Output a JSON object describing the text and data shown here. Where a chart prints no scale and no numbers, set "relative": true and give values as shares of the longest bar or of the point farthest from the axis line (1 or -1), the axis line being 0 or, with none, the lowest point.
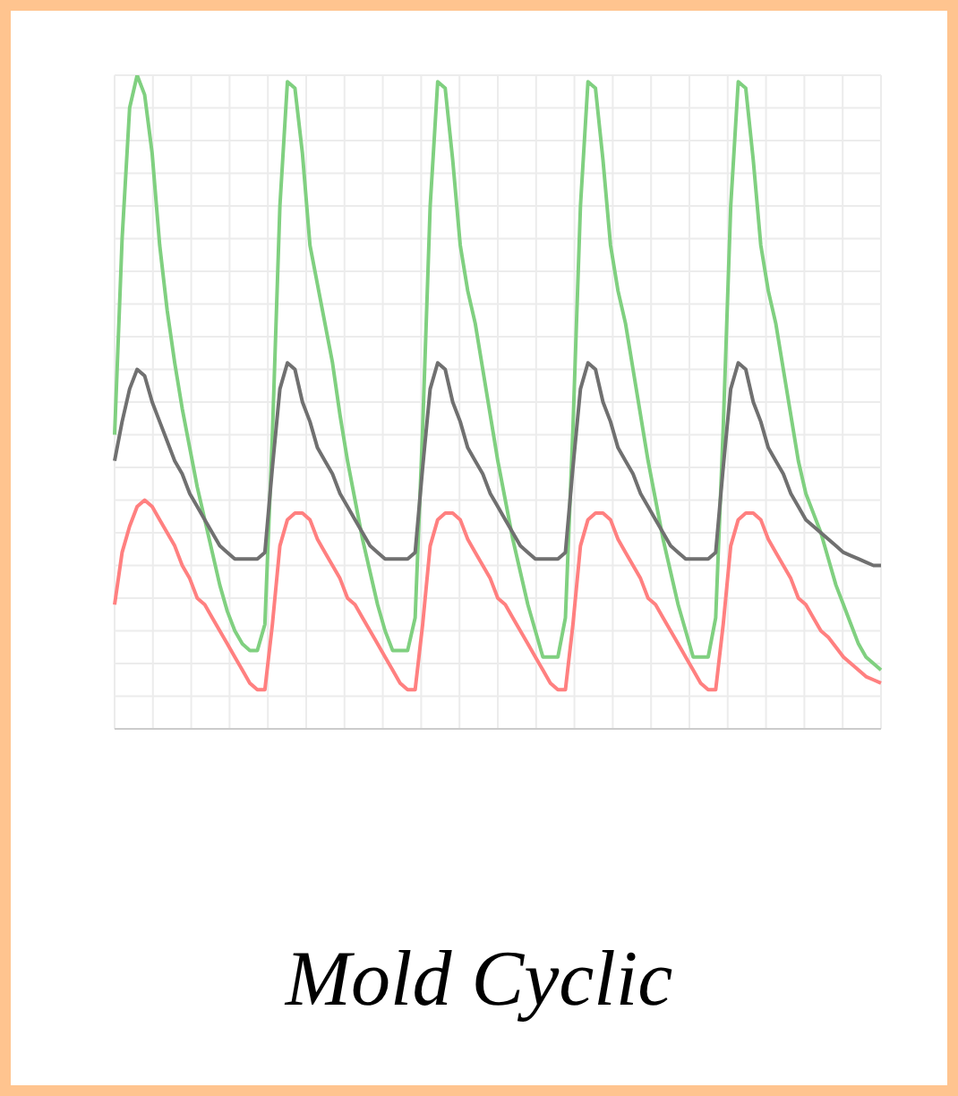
{
  "chart_data": {
    "type": "line",
    "title": "Mold Cyclic",
    "relative": true,
    "grid": true,
    "marker": "none",
    "line_style": "solid",
    "categories": [
      null,
      null,
      null,
      null,
      null,
      null,
      null,
      null,
      null,
      null,
      null,
      null,
      null,
      null,
      null,
      null,
      null,
      null,
      null,
      null,
      null,
      null,
      null,
      null,
      null,
      null,
      null,
      null,
      null,
      null,
      null,
      null,
      null,
      null,
      null,
      null,
      null,
      null,
      null,
      null,
      null,
      null,
      null,
      null,
      null,
      null,
      null,
      null,
      null,
      null,
      null,
      null,
      null,
      null,
      null,
      null,
      null,
      null,
      null,
      null,
      null,
      null,
      null,
      null,
      null,
      null,
      null,
      null,
      null,
      null,
      null,
      null,
      null,
      null,
      null,
      null,
      null,
      null,
      null,
      null,
      null,
      null,
      null,
      null,
      null,
      null,
      null,
      null,
      null,
      null,
      null,
      null,
      null,
      null,
      null,
      null,
      null,
      null,
      null,
      null,
      null,
      null,
      null
    ],
    "series": [
      {
        "color": "#80d080",
        "values": [
          0.45,
          0.75,
          0.95,
          1.0,
          0.97,
          0.88,
          0.74,
          0.64,
          0.56,
          0.49,
          0.43,
          0.37,
          0.32,
          0.27,
          0.22,
          0.18,
          0.15,
          0.13,
          0.12,
          0.12,
          0.16,
          0.45,
          0.8,
          0.99,
          0.98,
          0.88,
          0.74,
          0.68,
          0.62,
          0.56,
          0.48,
          0.41,
          0.35,
          0.29,
          0.24,
          0.19,
          0.15,
          0.12,
          0.12,
          0.12,
          0.17,
          0.46,
          0.8,
          0.99,
          0.98,
          0.87,
          0.74,
          0.67,
          0.62,
          0.55,
          0.48,
          0.41,
          0.35,
          0.29,
          0.24,
          0.19,
          0.15,
          0.11,
          0.11,
          0.11,
          0.17,
          0.46,
          0.8,
          0.99,
          0.98,
          0.87,
          0.74,
          0.67,
          0.62,
          0.55,
          0.48,
          0.41,
          0.35,
          0.29,
          0.24,
          0.19,
          0.15,
          0.11,
          0.11,
          0.11,
          0.17,
          0.46,
          0.8,
          0.99,
          0.98,
          0.87,
          0.74,
          0.67,
          0.62,
          0.55,
          0.48,
          0.41,
          0.36,
          0.33,
          0.3,
          0.26,
          0.22,
          0.19,
          0.16,
          0.13,
          0.11,
          0.1,
          0.09
        ]
      },
      {
        "color": "#ff8080",
        "values": [
          0.19,
          0.27,
          0.31,
          0.34,
          0.35,
          0.34,
          0.32,
          0.3,
          0.28,
          0.25,
          0.23,
          0.2,
          0.19,
          0.17,
          0.15,
          0.13,
          0.11,
          0.09,
          0.07,
          0.06,
          0.06,
          0.16,
          0.28,
          0.32,
          0.33,
          0.33,
          0.32,
          0.29,
          0.27,
          0.25,
          0.23,
          0.2,
          0.19,
          0.17,
          0.15,
          0.13,
          0.11,
          0.09,
          0.07,
          0.06,
          0.06,
          0.16,
          0.28,
          0.32,
          0.33,
          0.33,
          0.32,
          0.29,
          0.27,
          0.25,
          0.23,
          0.2,
          0.19,
          0.17,
          0.15,
          0.13,
          0.11,
          0.09,
          0.07,
          0.06,
          0.06,
          0.16,
          0.28,
          0.32,
          0.33,
          0.33,
          0.32,
          0.29,
          0.27,
          0.25,
          0.23,
          0.2,
          0.19,
          0.17,
          0.15,
          0.13,
          0.11,
          0.09,
          0.07,
          0.06,
          0.06,
          0.16,
          0.28,
          0.32,
          0.33,
          0.33,
          0.32,
          0.29,
          0.27,
          0.25,
          0.23,
          0.2,
          0.19,
          0.17,
          0.15,
          0.14,
          0.125,
          0.11,
          0.1,
          0.09,
          0.08,
          0.075,
          0.07
        ]
      },
      {
        "color": "#707070",
        "values": [
          0.41,
          0.47,
          0.52,
          0.55,
          0.54,
          0.5,
          0.47,
          0.44,
          0.41,
          0.39,
          0.36,
          0.34,
          0.32,
          0.3,
          0.28,
          0.27,
          0.26,
          0.26,
          0.26,
          0.26,
          0.27,
          0.4,
          0.52,
          0.56,
          0.55,
          0.5,
          0.47,
          0.43,
          0.41,
          0.39,
          0.36,
          0.34,
          0.32,
          0.3,
          0.28,
          0.27,
          0.26,
          0.26,
          0.26,
          0.26,
          0.27,
          0.4,
          0.52,
          0.56,
          0.55,
          0.5,
          0.47,
          0.43,
          0.41,
          0.39,
          0.36,
          0.34,
          0.32,
          0.3,
          0.28,
          0.27,
          0.26,
          0.26,
          0.26,
          0.26,
          0.27,
          0.4,
          0.52,
          0.56,
          0.55,
          0.5,
          0.47,
          0.43,
          0.41,
          0.39,
          0.36,
          0.34,
          0.32,
          0.3,
          0.28,
          0.27,
          0.26,
          0.26,
          0.26,
          0.26,
          0.27,
          0.4,
          0.52,
          0.56,
          0.55,
          0.5,
          0.47,
          0.43,
          0.41,
          0.39,
          0.36,
          0.34,
          0.32,
          0.31,
          0.3,
          0.29,
          0.28,
          0.27,
          0.265,
          0.26,
          0.255,
          0.25,
          0.25
        ]
      }
    ]
  }
}
